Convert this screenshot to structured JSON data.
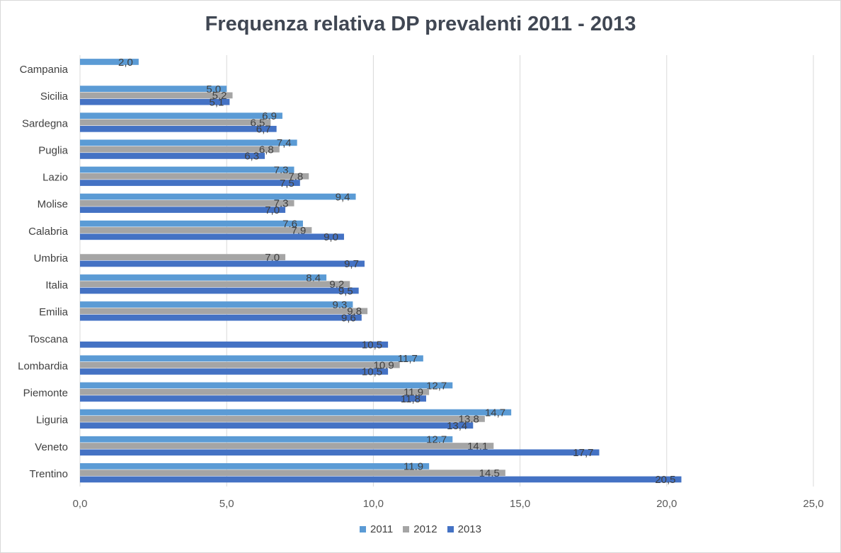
{
  "chart_data": {
    "type": "bar",
    "orientation": "horizontal",
    "title": "Frequenza relativa DP prevalenti 2011 - 2013",
    "categories": [
      "Trentino",
      "Veneto",
      "Liguria",
      "Piemonte",
      "Lombardia",
      "Toscana",
      "Emilia",
      "Italia",
      "Umbria",
      "Calabria",
      "Molise",
      "Lazio",
      "Puglia",
      "Sardegna",
      "Sicilia",
      "Campania"
    ],
    "series": [
      {
        "name": "2011",
        "color": "#5b9bd5",
        "values": [
          11.9,
          12.7,
          14.7,
          12.7,
          11.7,
          null,
          9.3,
          8.4,
          null,
          7.6,
          9.4,
          7.3,
          7.4,
          6.9,
          5.0,
          2.0
        ],
        "labels": [
          "11,9",
          "12,7",
          "14,7",
          "12,7",
          "11,7",
          "",
          "9,3",
          "8,4",
          "",
          "7,6",
          "9,4",
          "7,3",
          "7,4",
          "6,9",
          "5,0",
          "2,0"
        ]
      },
      {
        "name": "2012",
        "color": "#a5a5a5",
        "values": [
          14.5,
          14.1,
          13.8,
          11.9,
          10.9,
          null,
          9.8,
          9.2,
          7.0,
          7.9,
          7.3,
          7.8,
          6.8,
          6.5,
          5.2,
          null
        ],
        "labels": [
          "14,5",
          "14,1",
          "13,8",
          "11,9",
          "10,9",
          "",
          "9,8",
          "9,2",
          "7,0",
          "7,9",
          "7,3",
          "7,8",
          "6,8",
          "6,5",
          "5,2",
          ""
        ]
      },
      {
        "name": "2013",
        "color": "#4472c4",
        "values": [
          20.5,
          17.7,
          13.4,
          11.8,
          10.5,
          10.5,
          9.6,
          9.5,
          9.7,
          9.0,
          7.0,
          7.5,
          6.3,
          6.7,
          5.1,
          null
        ],
        "labels": [
          "20,5",
          "17,7",
          "13,4",
          "11,8",
          "10,5",
          "10,5",
          "9,6",
          "9,5",
          "9,7",
          "9,0",
          "7,0",
          "7,5",
          "6,3",
          "6,7",
          "5,1",
          ""
        ]
      }
    ],
    "xlim": [
      0,
      25
    ],
    "xticks": [
      0,
      5,
      10,
      15,
      20,
      25
    ],
    "xtick_labels": [
      "0,0",
      "5,0",
      "10,0",
      "15,0",
      "20,0",
      "25,0"
    ],
    "grid": true,
    "legend_position": "bottom"
  }
}
